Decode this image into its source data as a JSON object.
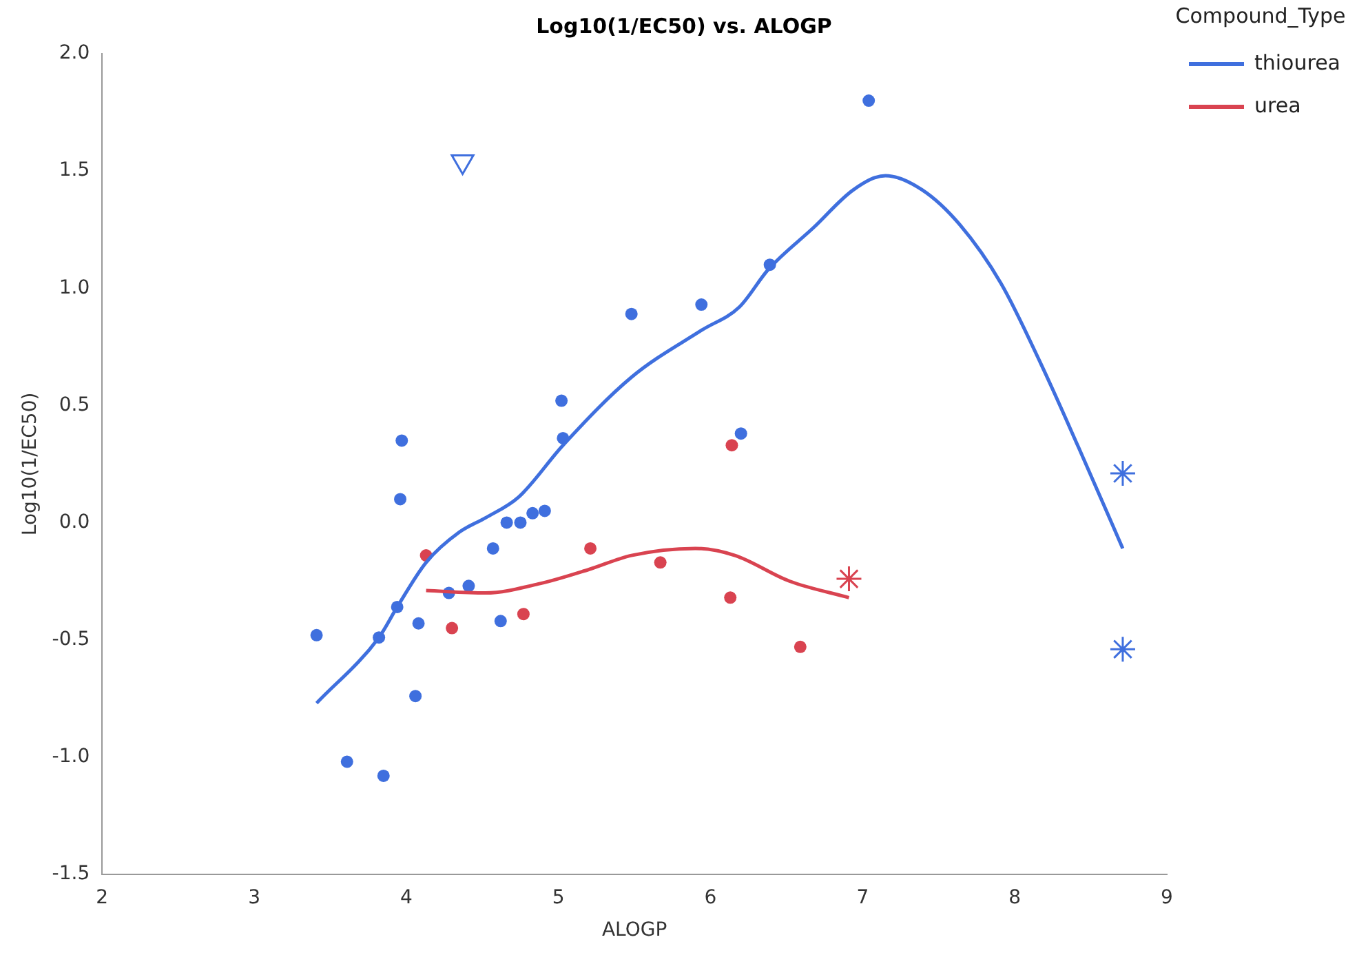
{
  "chart_data": {
    "type": "scatter",
    "title": "Log10(1/EC50) vs. ALOGP",
    "xlabel": "ALOGP",
    "ylabel": "Log10(1/EC50)",
    "legend_title": "Compound_Type",
    "legend": "right",
    "grid": false,
    "xlim": [
      2,
      9
    ],
    "xticks": [
      2,
      3,
      4,
      5,
      6,
      7,
      8,
      9
    ],
    "ylim": [
      -1.5,
      2.0
    ],
    "yticks": [
      {
        "value": -1.5,
        "label": "-1.5"
      },
      {
        "value": -1,
        "label": "-1.0"
      },
      {
        "value": -0.5,
        "label": "-0.5"
      },
      {
        "value": 0,
        "label": "0.0"
      },
      {
        "value": 0.5,
        "label": "0.5"
      },
      {
        "value": 1,
        "label": "1.0"
      },
      {
        "value": 1.5,
        "label": "1.5"
      },
      {
        "value": 2,
        "label": "2.0"
      }
    ],
    "series": [
      {
        "name": "thiourea",
        "type": "line",
        "marker": "none",
        "color": "#3f6fde",
        "x": [
          3.41,
          3.82,
          3.94,
          4.13,
          4.35,
          4.52,
          4.74,
          5.03,
          5.48,
          5.94,
          6.19,
          6.38,
          6.68,
          6.94,
          7.15,
          7.39,
          7.64,
          7.91,
          8.17,
          8.42,
          8.71
        ],
        "values": [
          -0.77,
          -0.49,
          -0.36,
          -0.17,
          -0.04,
          0.02,
          0.11,
          0.33,
          0.62,
          0.82,
          0.92,
          1.08,
          1.26,
          1.42,
          1.48,
          1.42,
          1.27,
          1.02,
          0.68,
          0.32,
          -0.11
        ]
      },
      {
        "name": "urea",
        "type": "line",
        "marker": "none",
        "color": "#d94350",
        "x": [
          4.13,
          4.52,
          4.88,
          5.2,
          5.48,
          5.9,
          6.16,
          6.52,
          6.91
        ],
        "values": [
          -0.29,
          -0.3,
          -0.26,
          -0.2,
          -0.14,
          -0.11,
          -0.14,
          -0.25,
          -0.32
        ]
      },
      {
        "type": "scatter",
        "marker": "circle",
        "color": "#3f6fde",
        "x": [
          3.41,
          3.61,
          3.85,
          3.82,
          3.94,
          3.97,
          3.96,
          4.06,
          4.08,
          4.28,
          4.41,
          4.57,
          4.62,
          4.66,
          4.75,
          4.83,
          4.91,
          5.02,
          5.03,
          5.48,
          5.94,
          6.39,
          6.2,
          7.04
        ],
        "values": [
          -0.48,
          -1.02,
          -1.08,
          -0.49,
          -0.36,
          0.35,
          0.1,
          -0.74,
          -0.43,
          -0.3,
          -0.27,
          -0.11,
          -0.42,
          0,
          0,
          0.04,
          0.05,
          0.52,
          0.36,
          0.89,
          0.93,
          1.1,
          0.38,
          1.8
        ]
      },
      {
        "type": "scatter",
        "marker": "circle",
        "color": "#d94350",
        "x": [
          4.13,
          4.3,
          4.77,
          5.21,
          5.67,
          6.14,
          6.13,
          6.59
        ],
        "values": [
          -0.14,
          -0.45,
          -0.39,
          -0.11,
          -0.17,
          0.33,
          -0.32,
          -0.53
        ]
      },
      {
        "type": "scatter",
        "marker": "cross",
        "color": "#3f6fde",
        "x": [
          8.71,
          8.71
        ],
        "values": [
          0.21,
          -0.54
        ]
      },
      {
        "type": "scatter",
        "marker": "cross",
        "color": "#d94350",
        "x": [
          6.91
        ],
        "values": [
          -0.24
        ]
      },
      {
        "type": "scatter",
        "marker": "triangle",
        "color": "#3f6fde",
        "x": [
          4.37
        ],
        "values": [
          1.54
        ]
      }
    ]
  }
}
